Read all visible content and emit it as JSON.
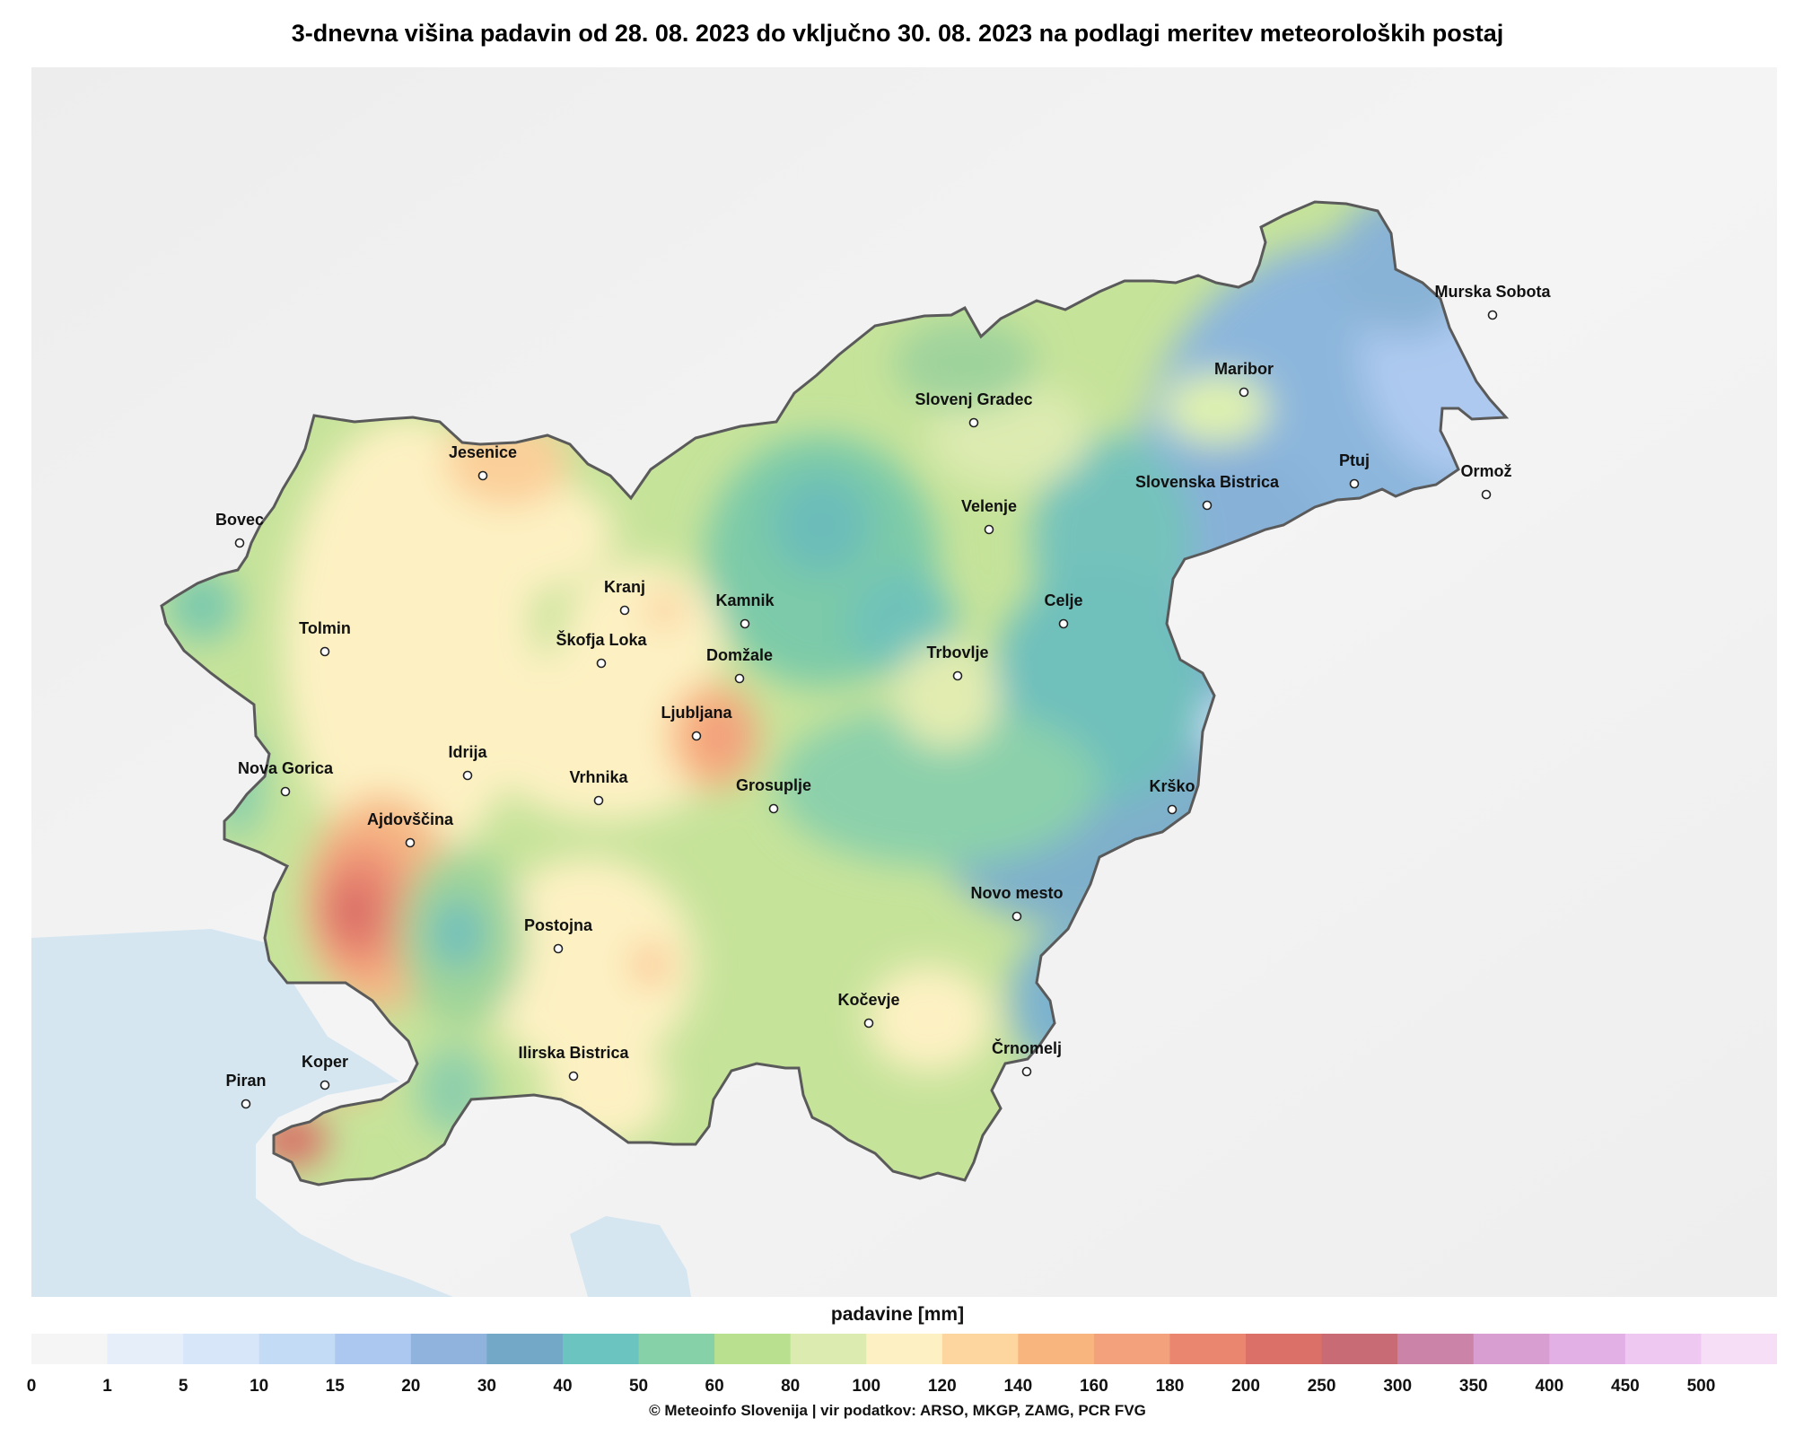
{
  "title": "3-dnevna višina padavin od 28. 08. 2023 do vključno 30. 08. 2023 na podlagi meritev meteoroloških postaj",
  "legend": {
    "title": "padavine [mm]",
    "ticks": [
      "0",
      "1",
      "5",
      "10",
      "15",
      "20",
      "30",
      "40",
      "50",
      "60",
      "80",
      "100",
      "120",
      "140",
      "160",
      "180",
      "200",
      "250",
      "300",
      "350",
      "400",
      "450",
      "500"
    ],
    "colors": [
      "#f5f5f5",
      "#e6eef9",
      "#d8e6fa",
      "#c4dbf6",
      "#acc8f0",
      "#8fb3dc",
      "#73a8c7",
      "#6cc4c0",
      "#87d1a8",
      "#b8e08f",
      "#dcebb0",
      "#fdf1c3",
      "#fdd69f",
      "#f9b57e",
      "#f3a07c",
      "#ea8570",
      "#da7068",
      "#c96b74",
      "#cb84a8",
      "#d89ed2",
      "#e3b0e5",
      "#efc8f1",
      "#f6dff6"
    ]
  },
  "credit": "© Meteoinfo Slovenija  |  vir podatkov: ARSO, MKGP, ZAMG, PCR FVG",
  "cities": [
    {
      "name": "Murska Sobota"
    },
    {
      "name": "Maribor"
    },
    {
      "name": "Slovenj Gradec"
    },
    {
      "name": "Ptuj"
    },
    {
      "name": "Ormož"
    },
    {
      "name": "Slovenska Bistrica"
    },
    {
      "name": "Velenje"
    },
    {
      "name": "Jesenice"
    },
    {
      "name": "Bovec"
    },
    {
      "name": "Kranj"
    },
    {
      "name": "Kamnik"
    },
    {
      "name": "Celje"
    },
    {
      "name": "Tolmin"
    },
    {
      "name": "Škofja Loka"
    },
    {
      "name": "Domžale"
    },
    {
      "name": "Trbovlje"
    },
    {
      "name": "Ljubljana"
    },
    {
      "name": "Idrija"
    },
    {
      "name": "Nova Gorica"
    },
    {
      "name": "Vrhnika"
    },
    {
      "name": "Grosuplje"
    },
    {
      "name": "Krško"
    },
    {
      "name": "Ajdovščina"
    },
    {
      "name": "Novo mesto"
    },
    {
      "name": "Postojna"
    },
    {
      "name": "Kočevje"
    },
    {
      "name": "Ilirska Bistrica"
    },
    {
      "name": "Črnomelj"
    },
    {
      "name": "Koper"
    },
    {
      "name": "Piran"
    }
  ]
}
